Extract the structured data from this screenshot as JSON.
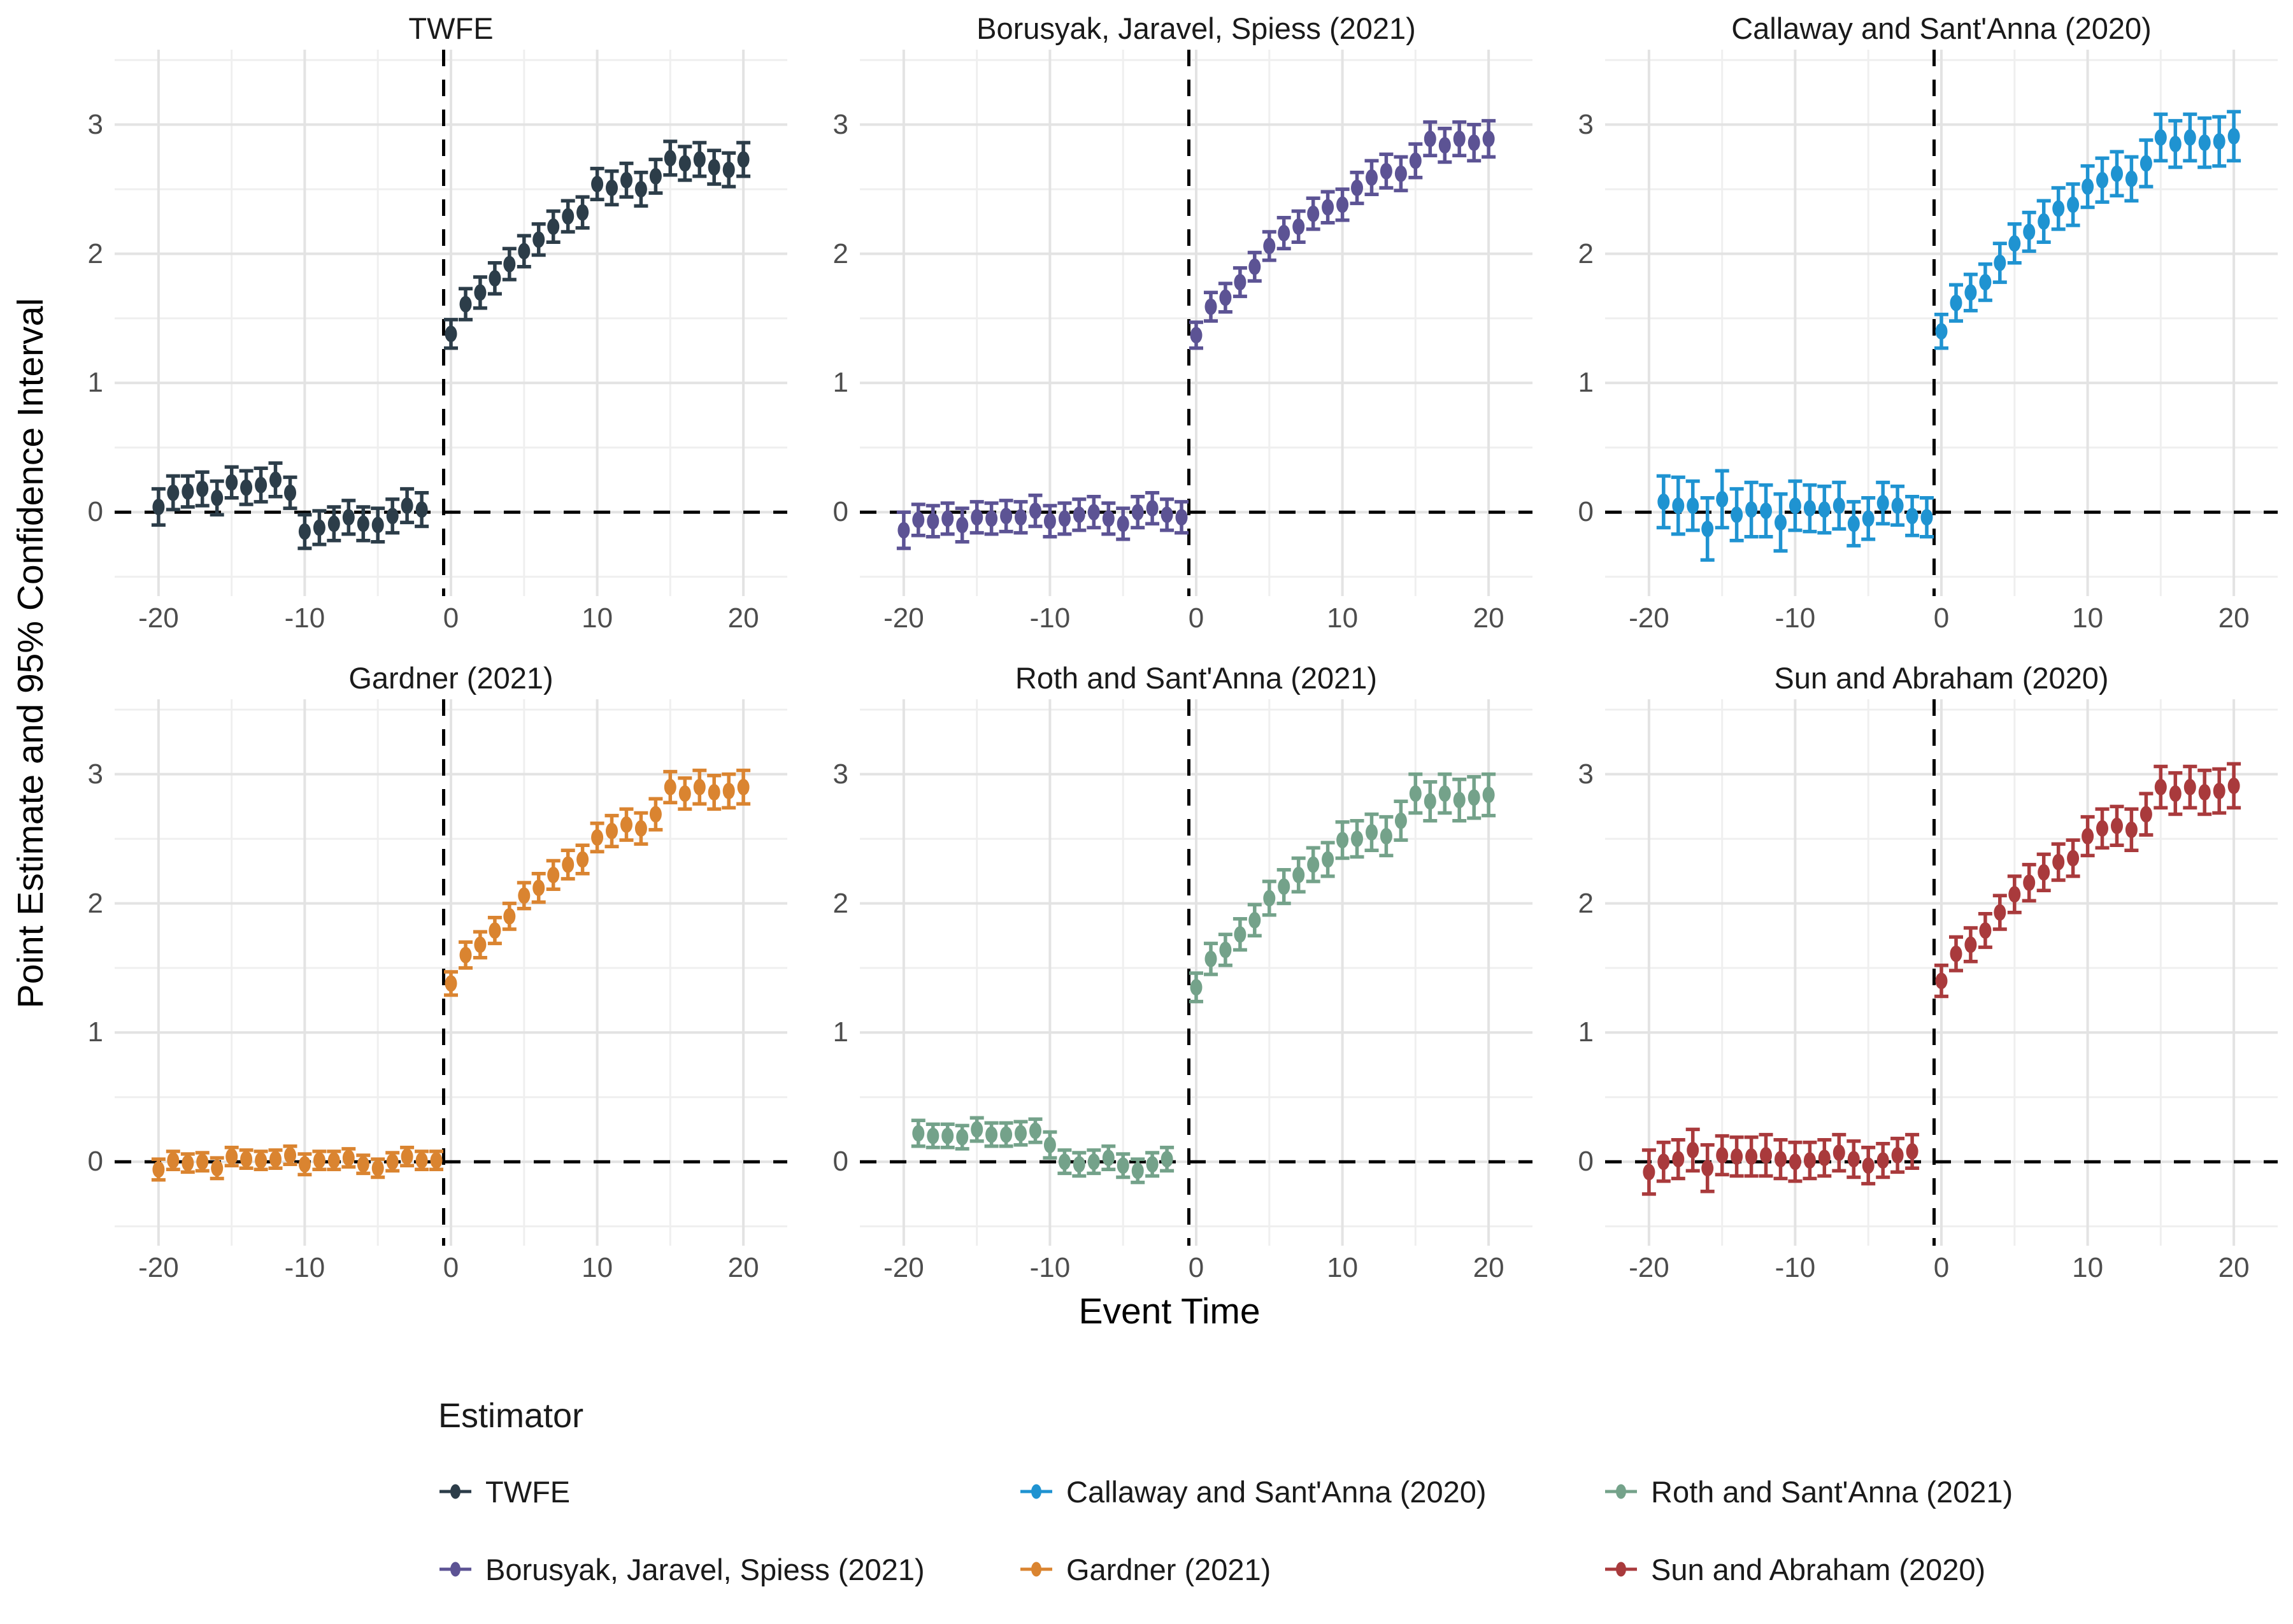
{
  "figure": {
    "y_axis_title": "Point Estimate and 95% Confidence Interval",
    "x_axis_title": "Event Time",
    "background_color": "#ffffff"
  },
  "axes": {
    "x_domain": [
      -23,
      23
    ],
    "y_domain": [
      -0.65,
      3.58
    ],
    "x_ticks": [
      -20,
      -10,
      0,
      10,
      20
    ],
    "y_ticks": [
      0,
      1,
      2,
      3
    ],
    "x_minor": [
      -15,
      -5,
      5,
      15
    ],
    "y_minor": [
      -0.5,
      0.5,
      1.5,
      2.5,
      3.5
    ],
    "major_grid_color": "#e3e3e3",
    "minor_grid_color": "#efefef",
    "tick_label_color": "#4d4d4d",
    "ref_hline_y": 0,
    "ref_vline_x": -0.5,
    "ref_line_color": "#000000",
    "grid": "on"
  },
  "legend": {
    "title": "Estimator",
    "position": "bottom-left",
    "items": [
      {
        "label": "TWFE",
        "color": "#2C3D49"
      },
      {
        "label": "Callaway and Sant'Anna (2020)",
        "color": "#1F93D1"
      },
      {
        "label": "Roth and Sant'Anna (2021)",
        "color": "#74A28A"
      },
      {
        "label": "Borusyak, Jaravel, Spiess (2021)",
        "color": "#5C5394"
      },
      {
        "label": "Gardner (2021)",
        "color": "#DA8430"
      },
      {
        "label": "Sun and Abraham (2020)",
        "color": "#A93A3C"
      }
    ]
  },
  "chart_data": [
    {
      "type": "pointrange",
      "title": "TWFE",
      "color": "#2C3D49",
      "point_format": [
        "event_time",
        "estimate",
        "ci_halfwidth"
      ],
      "points": [
        [
          -20,
          0.04,
          0.14
        ],
        [
          -19,
          0.15,
          0.13
        ],
        [
          -18,
          0.16,
          0.12
        ],
        [
          -17,
          0.18,
          0.13
        ],
        [
          -16,
          0.11,
          0.13
        ],
        [
          -15,
          0.23,
          0.12
        ],
        [
          -14,
          0.19,
          0.13
        ],
        [
          -13,
          0.21,
          0.13
        ],
        [
          -12,
          0.25,
          0.13
        ],
        [
          -11,
          0.15,
          0.12
        ],
        [
          -10,
          -0.15,
          0.13
        ],
        [
          -9,
          -0.12,
          0.13
        ],
        [
          -8,
          -0.09,
          0.13
        ],
        [
          -7,
          -0.04,
          0.13
        ],
        [
          -6,
          -0.09,
          0.13
        ],
        [
          -5,
          -0.1,
          0.13
        ],
        [
          -4,
          -0.03,
          0.13
        ],
        [
          -3,
          0.05,
          0.13
        ],
        [
          -2,
          0.02,
          0.13
        ],
        [
          0,
          1.38,
          0.11
        ],
        [
          1,
          1.61,
          0.12
        ],
        [
          2,
          1.7,
          0.12
        ],
        [
          3,
          1.81,
          0.12
        ],
        [
          4,
          1.92,
          0.12
        ],
        [
          5,
          2.02,
          0.12
        ],
        [
          6,
          2.11,
          0.12
        ],
        [
          7,
          2.21,
          0.12
        ],
        [
          8,
          2.29,
          0.12
        ],
        [
          9,
          2.32,
          0.12
        ],
        [
          10,
          2.54,
          0.12
        ],
        [
          11,
          2.51,
          0.13
        ],
        [
          12,
          2.57,
          0.13
        ],
        [
          13,
          2.5,
          0.13
        ],
        [
          14,
          2.6,
          0.13
        ],
        [
          15,
          2.74,
          0.13
        ],
        [
          16,
          2.7,
          0.13
        ],
        [
          17,
          2.73,
          0.13
        ],
        [
          18,
          2.67,
          0.13
        ],
        [
          19,
          2.65,
          0.13
        ],
        [
          20,
          2.73,
          0.13
        ]
      ]
    },
    {
      "type": "pointrange",
      "title": "Borusyak, Jaravel, Spiess (2021)",
      "color": "#5C5394",
      "point_format": [
        "event_time",
        "estimate",
        "ci_halfwidth"
      ],
      "points": [
        [
          -20,
          -0.14,
          0.14
        ],
        [
          -19,
          -0.06,
          0.12
        ],
        [
          -18,
          -0.07,
          0.12
        ],
        [
          -17,
          -0.05,
          0.12
        ],
        [
          -16,
          -0.1,
          0.13
        ],
        [
          -15,
          -0.04,
          0.12
        ],
        [
          -14,
          -0.05,
          0.12
        ],
        [
          -13,
          -0.03,
          0.12
        ],
        [
          -12,
          -0.04,
          0.12
        ],
        [
          -11,
          0.01,
          0.12
        ],
        [
          -10,
          -0.07,
          0.12
        ],
        [
          -9,
          -0.05,
          0.12
        ],
        [
          -8,
          -0.02,
          0.12
        ],
        [
          -7,
          0.0,
          0.12
        ],
        [
          -6,
          -0.05,
          0.12
        ],
        [
          -5,
          -0.09,
          0.12
        ],
        [
          -4,
          0.0,
          0.12
        ],
        [
          -3,
          0.03,
          0.12
        ],
        [
          -2,
          -0.02,
          0.12
        ],
        [
          -1,
          -0.04,
          0.12
        ],
        [
          0,
          1.37,
          0.1
        ],
        [
          1,
          1.59,
          0.11
        ],
        [
          2,
          1.66,
          0.11
        ],
        [
          3,
          1.78,
          0.11
        ],
        [
          4,
          1.9,
          0.11
        ],
        [
          5,
          2.06,
          0.11
        ],
        [
          6,
          2.16,
          0.12
        ],
        [
          7,
          2.21,
          0.12
        ],
        [
          8,
          2.31,
          0.12
        ],
        [
          9,
          2.36,
          0.12
        ],
        [
          10,
          2.38,
          0.12
        ],
        [
          11,
          2.51,
          0.12
        ],
        [
          12,
          2.59,
          0.13
        ],
        [
          13,
          2.64,
          0.13
        ],
        [
          14,
          2.62,
          0.13
        ],
        [
          15,
          2.72,
          0.13
        ],
        [
          16,
          2.89,
          0.13
        ],
        [
          17,
          2.84,
          0.13
        ],
        [
          18,
          2.89,
          0.13
        ],
        [
          19,
          2.86,
          0.14
        ],
        [
          20,
          2.89,
          0.14
        ]
      ]
    },
    {
      "type": "pointrange",
      "title": "Callaway and Sant'Anna (2020)",
      "color": "#1F93D1",
      "point_format": [
        "event_time",
        "estimate",
        "ci_halfwidth"
      ],
      "points": [
        [
          -19,
          0.08,
          0.2
        ],
        [
          -18,
          0.05,
          0.22
        ],
        [
          -17,
          0.05,
          0.19
        ],
        [
          -16,
          -0.13,
          0.24
        ],
        [
          -15,
          0.1,
          0.22
        ],
        [
          -14,
          -0.02,
          0.2
        ],
        [
          -13,
          0.02,
          0.21
        ],
        [
          -12,
          0.01,
          0.2
        ],
        [
          -11,
          -0.08,
          0.22
        ],
        [
          -10,
          0.05,
          0.19
        ],
        [
          -9,
          0.03,
          0.18
        ],
        [
          -8,
          0.02,
          0.18
        ],
        [
          -7,
          0.05,
          0.18
        ],
        [
          -6,
          -0.09,
          0.17
        ],
        [
          -5,
          -0.05,
          0.16
        ],
        [
          -4,
          0.07,
          0.16
        ],
        [
          -3,
          0.05,
          0.15
        ],
        [
          -2,
          -0.03,
          0.15
        ],
        [
          -1,
          -0.04,
          0.15
        ],
        [
          0,
          1.4,
          0.13
        ],
        [
          1,
          1.62,
          0.14
        ],
        [
          2,
          1.7,
          0.14
        ],
        [
          3,
          1.78,
          0.14
        ],
        [
          4,
          1.93,
          0.15
        ],
        [
          5,
          2.08,
          0.15
        ],
        [
          6,
          2.17,
          0.15
        ],
        [
          7,
          2.25,
          0.16
        ],
        [
          8,
          2.35,
          0.16
        ],
        [
          9,
          2.38,
          0.16
        ],
        [
          10,
          2.52,
          0.16
        ],
        [
          11,
          2.57,
          0.17
        ],
        [
          12,
          2.62,
          0.17
        ],
        [
          13,
          2.58,
          0.17
        ],
        [
          14,
          2.7,
          0.18
        ],
        [
          15,
          2.9,
          0.18
        ],
        [
          16,
          2.85,
          0.18
        ],
        [
          17,
          2.9,
          0.18
        ],
        [
          18,
          2.86,
          0.19
        ],
        [
          19,
          2.87,
          0.19
        ],
        [
          20,
          2.91,
          0.19
        ]
      ]
    },
    {
      "type": "pointrange",
      "title": "Gardner (2021)",
      "color": "#DA8430",
      "point_format": [
        "event_time",
        "estimate",
        "ci_halfwidth"
      ],
      "points": [
        [
          -20,
          -0.06,
          0.08
        ],
        [
          -19,
          0.01,
          0.07
        ],
        [
          -18,
          -0.01,
          0.07
        ],
        [
          -17,
          0.0,
          0.07
        ],
        [
          -16,
          -0.05,
          0.08
        ],
        [
          -15,
          0.04,
          0.07
        ],
        [
          -14,
          0.02,
          0.07
        ],
        [
          -13,
          0.01,
          0.07
        ],
        [
          -12,
          0.02,
          0.07
        ],
        [
          -11,
          0.05,
          0.07
        ],
        [
          -10,
          -0.02,
          0.08
        ],
        [
          -9,
          0.01,
          0.07
        ],
        [
          -8,
          0.01,
          0.07
        ],
        [
          -7,
          0.03,
          0.07
        ],
        [
          -6,
          -0.02,
          0.07
        ],
        [
          -5,
          -0.05,
          0.07
        ],
        [
          -4,
          0.0,
          0.07
        ],
        [
          -3,
          0.04,
          0.07
        ],
        [
          -2,
          0.01,
          0.07
        ],
        [
          -1,
          0.01,
          0.07
        ],
        [
          0,
          1.38,
          0.09
        ],
        [
          1,
          1.6,
          0.1
        ],
        [
          2,
          1.68,
          0.1
        ],
        [
          3,
          1.79,
          0.1
        ],
        [
          4,
          1.9,
          0.1
        ],
        [
          5,
          2.06,
          0.1
        ],
        [
          6,
          2.12,
          0.11
        ],
        [
          7,
          2.22,
          0.11
        ],
        [
          8,
          2.3,
          0.11
        ],
        [
          9,
          2.34,
          0.11
        ],
        [
          10,
          2.51,
          0.11
        ],
        [
          11,
          2.56,
          0.12
        ],
        [
          12,
          2.61,
          0.12
        ],
        [
          13,
          2.58,
          0.12
        ],
        [
          14,
          2.69,
          0.12
        ],
        [
          15,
          2.9,
          0.12
        ],
        [
          16,
          2.85,
          0.12
        ],
        [
          17,
          2.9,
          0.13
        ],
        [
          18,
          2.86,
          0.13
        ],
        [
          19,
          2.87,
          0.13
        ],
        [
          20,
          2.9,
          0.13
        ]
      ]
    },
    {
      "type": "pointrange",
      "title": "Roth and Sant'Anna (2021)",
      "color": "#74A28A",
      "point_format": [
        "event_time",
        "estimate",
        "ci_halfwidth"
      ],
      "points": [
        [
          -19,
          0.22,
          0.1
        ],
        [
          -18,
          0.2,
          0.09
        ],
        [
          -17,
          0.2,
          0.09
        ],
        [
          -16,
          0.19,
          0.09
        ],
        [
          -15,
          0.25,
          0.09
        ],
        [
          -14,
          0.21,
          0.09
        ],
        [
          -13,
          0.21,
          0.09
        ],
        [
          -12,
          0.22,
          0.09
        ],
        [
          -11,
          0.24,
          0.09
        ],
        [
          -10,
          0.13,
          0.1
        ],
        [
          -9,
          0.0,
          0.09
        ],
        [
          -8,
          -0.02,
          0.09
        ],
        [
          -7,
          0.0,
          0.09
        ],
        [
          -6,
          0.03,
          0.09
        ],
        [
          -5,
          -0.03,
          0.09
        ],
        [
          -4,
          -0.07,
          0.09
        ],
        [
          -3,
          -0.02,
          0.09
        ],
        [
          -2,
          0.02,
          0.09
        ],
        [
          0,
          1.35,
          0.11
        ],
        [
          1,
          1.57,
          0.12
        ],
        [
          2,
          1.64,
          0.12
        ],
        [
          3,
          1.76,
          0.12
        ],
        [
          4,
          1.87,
          0.12
        ],
        [
          5,
          2.04,
          0.13
        ],
        [
          6,
          2.13,
          0.13
        ],
        [
          7,
          2.22,
          0.13
        ],
        [
          8,
          2.3,
          0.13
        ],
        [
          9,
          2.34,
          0.13
        ],
        [
          10,
          2.49,
          0.14
        ],
        [
          11,
          2.5,
          0.14
        ],
        [
          12,
          2.55,
          0.14
        ],
        [
          13,
          2.52,
          0.15
        ],
        [
          14,
          2.64,
          0.15
        ],
        [
          15,
          2.85,
          0.15
        ],
        [
          16,
          2.79,
          0.15
        ],
        [
          17,
          2.85,
          0.15
        ],
        [
          18,
          2.8,
          0.16
        ],
        [
          19,
          2.82,
          0.16
        ],
        [
          20,
          2.84,
          0.16
        ]
      ]
    },
    {
      "type": "pointrange",
      "title": "Sun and Abraham (2020)",
      "color": "#A93A3C",
      "point_format": [
        "event_time",
        "estimate",
        "ci_halfwidth"
      ],
      "points": [
        [
          -20,
          -0.08,
          0.17
        ],
        [
          -19,
          0.0,
          0.15
        ],
        [
          -18,
          0.02,
          0.15
        ],
        [
          -17,
          0.09,
          0.16
        ],
        [
          -16,
          -0.05,
          0.18
        ],
        [
          -15,
          0.05,
          0.15
        ],
        [
          -14,
          0.04,
          0.15
        ],
        [
          -13,
          0.04,
          0.15
        ],
        [
          -12,
          0.05,
          0.16
        ],
        [
          -11,
          0.02,
          0.15
        ],
        [
          -10,
          0.0,
          0.15
        ],
        [
          -9,
          0.01,
          0.14
        ],
        [
          -8,
          0.03,
          0.14
        ],
        [
          -7,
          0.07,
          0.14
        ],
        [
          -6,
          0.02,
          0.14
        ],
        [
          -5,
          -0.03,
          0.14
        ],
        [
          -4,
          0.01,
          0.13
        ],
        [
          -3,
          0.05,
          0.13
        ],
        [
          -2,
          0.08,
          0.13
        ],
        [
          0,
          1.4,
          0.12
        ],
        [
          1,
          1.61,
          0.13
        ],
        [
          2,
          1.68,
          0.13
        ],
        [
          3,
          1.79,
          0.13
        ],
        [
          4,
          1.93,
          0.13
        ],
        [
          5,
          2.07,
          0.14
        ],
        [
          6,
          2.16,
          0.14
        ],
        [
          7,
          2.24,
          0.14
        ],
        [
          8,
          2.32,
          0.14
        ],
        [
          9,
          2.35,
          0.14
        ],
        [
          10,
          2.52,
          0.15
        ],
        [
          11,
          2.58,
          0.15
        ],
        [
          12,
          2.6,
          0.15
        ],
        [
          13,
          2.57,
          0.16
        ],
        [
          14,
          2.69,
          0.16
        ],
        [
          15,
          2.9,
          0.16
        ],
        [
          16,
          2.85,
          0.16
        ],
        [
          17,
          2.9,
          0.16
        ],
        [
          18,
          2.86,
          0.17
        ],
        [
          19,
          2.87,
          0.17
        ],
        [
          20,
          2.91,
          0.17
        ]
      ]
    }
  ]
}
